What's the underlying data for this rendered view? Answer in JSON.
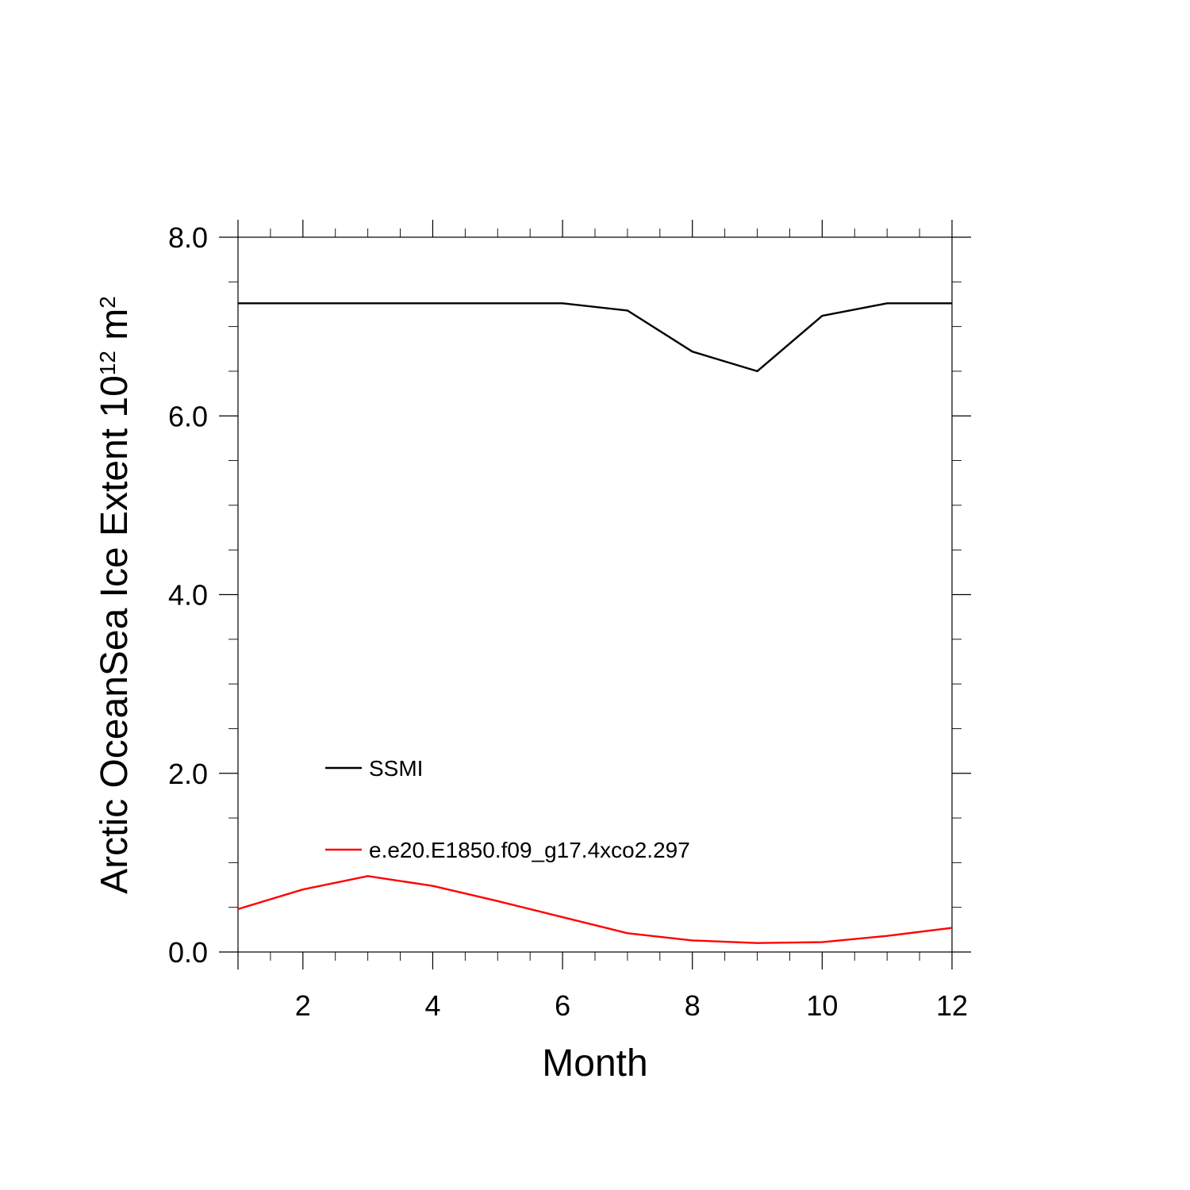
{
  "chart_data": {
    "type": "line",
    "xlabel": "Month",
    "ylabel_main": "Arctic OceanSea Ice Extent 10",
    "ylabel_exp": "12",
    "ylabel_unit": " m",
    "ylabel_unit_exp": "2",
    "xlim": [
      1,
      12
    ],
    "ylim": [
      0,
      8
    ],
    "x_ticks": [
      2,
      4,
      6,
      8,
      10,
      12
    ],
    "x_tick_labels": [
      "2",
      "4",
      "6",
      "8",
      "10",
      "12"
    ],
    "y_ticks": [
      0,
      2,
      4,
      6,
      8
    ],
    "y_tick_labels": [
      "0.0",
      "2.0",
      "4.0",
      "6.0",
      "8.0"
    ],
    "x": [
      1,
      2,
      3,
      4,
      5,
      6,
      7,
      8,
      9,
      10,
      11,
      12
    ],
    "series": [
      {
        "name": "SSMI",
        "color": "#000000",
        "values": [
          7.26,
          7.26,
          7.26,
          7.26,
          7.26,
          7.26,
          7.18,
          6.72,
          6.5,
          7.12,
          7.26,
          7.26
        ]
      },
      {
        "name": "e.e20.E1850.f09_g17.4xco2.297",
        "color": "#ff0000",
        "values": [
          0.48,
          0.7,
          0.85,
          0.74,
          0.57,
          0.39,
          0.21,
          0.13,
          0.1,
          0.11,
          0.18,
          0.27
        ]
      }
    ],
    "grid": false,
    "legend_position": "lower-left inside"
  }
}
